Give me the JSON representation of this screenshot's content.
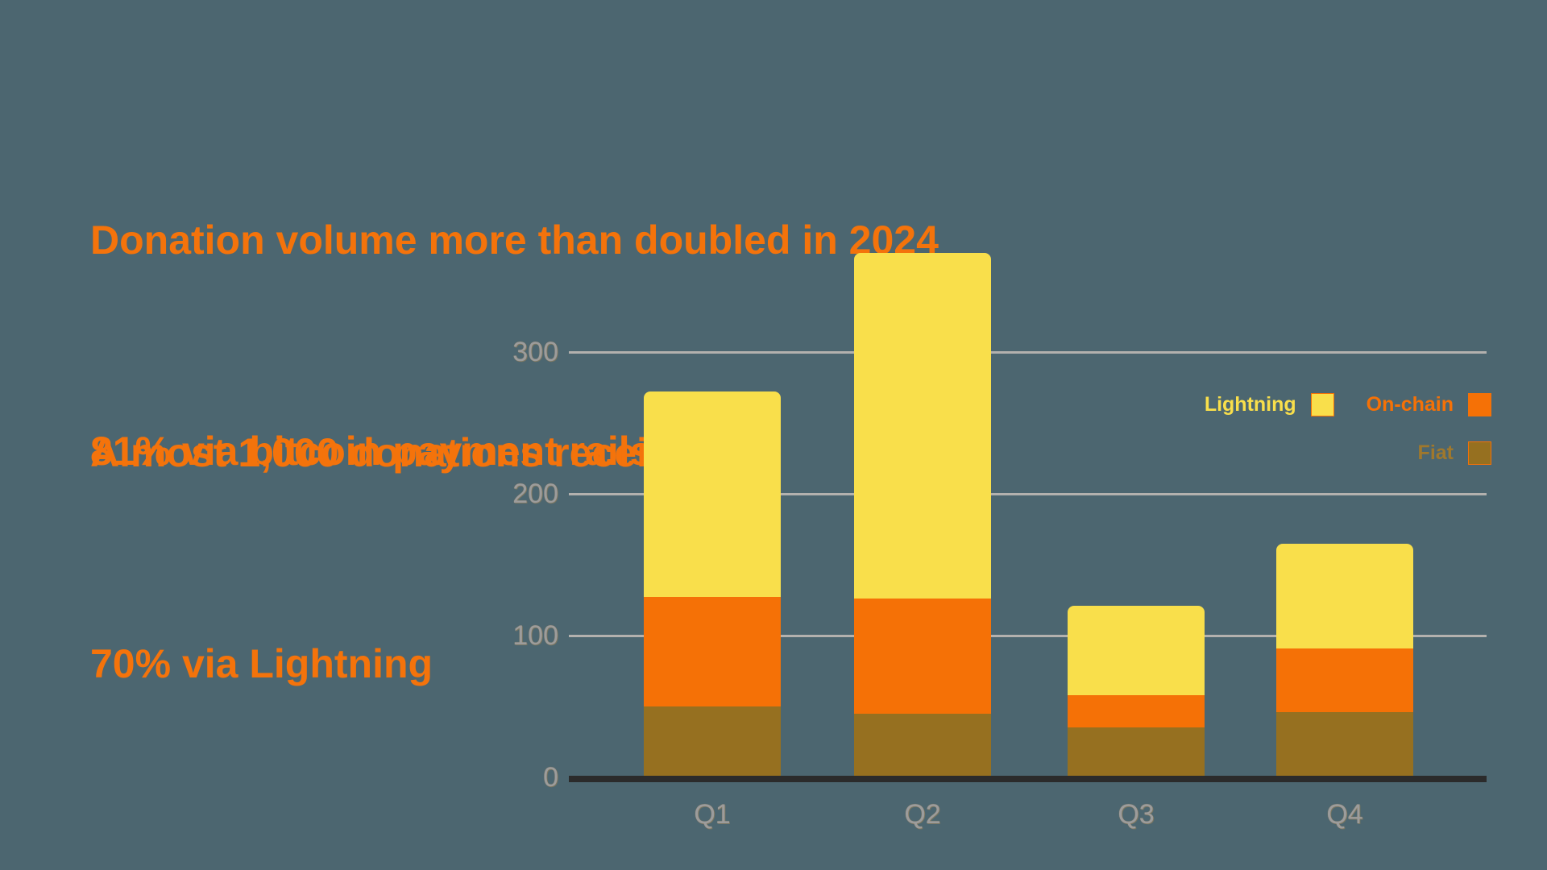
{
  "headline": {
    "line1": "Donation volume more than doubled in 2024",
    "line2": "Almost 1,000 donations received"
  },
  "stats": {
    "line1": "81% via bitcoin payment rails",
    "line2": "70% via Lightning"
  },
  "legend": {
    "items": [
      {
        "label": "Lightning",
        "color": "#F9DF4B",
        "text_color": "#F9DF4B"
      },
      {
        "label": "On-chain",
        "color": "#F57106",
        "text_color": "#F57106"
      },
      {
        "label": "Fiat",
        "color": "#967020",
        "text_color": "#A0782C"
      }
    ]
  },
  "colors": {
    "background": "#4C6670",
    "headline_orange": "#F4730B",
    "lightning_yellow": "#F9DF4B",
    "onchain_orange": "#F57106",
    "fiat_olive": "#967020",
    "axis_label_gray": "#9C9C9C",
    "gridline_gray": "#B3B1AE",
    "axis_line_dark": "#2B2B2B"
  },
  "chart_data": {
    "type": "bar",
    "stacked": true,
    "title": "",
    "xlabel": "",
    "ylabel": "",
    "categories": [
      "Q1",
      "Q2",
      "Q3",
      "Q4"
    ],
    "series": [
      {
        "name": "Fiat",
        "color": "#967020",
        "values": [
          50,
          45,
          35,
          46
        ]
      },
      {
        "name": "On-chain",
        "color": "#F57106",
        "values": [
          77,
          81,
          23,
          45
        ]
      },
      {
        "name": "Lightning",
        "color": "#F9DF4B",
        "values": [
          145,
          244,
          63,
          74
        ]
      }
    ],
    "stack_totals": [
      272,
      370,
      121,
      165
    ],
    "y_ticks": [
      0,
      100,
      200,
      300
    ],
    "ylim": [
      0,
      380
    ],
    "grid": true,
    "legend_position": "right",
    "legend_order": [
      "Lightning",
      "On-chain",
      "Fiat"
    ]
  }
}
